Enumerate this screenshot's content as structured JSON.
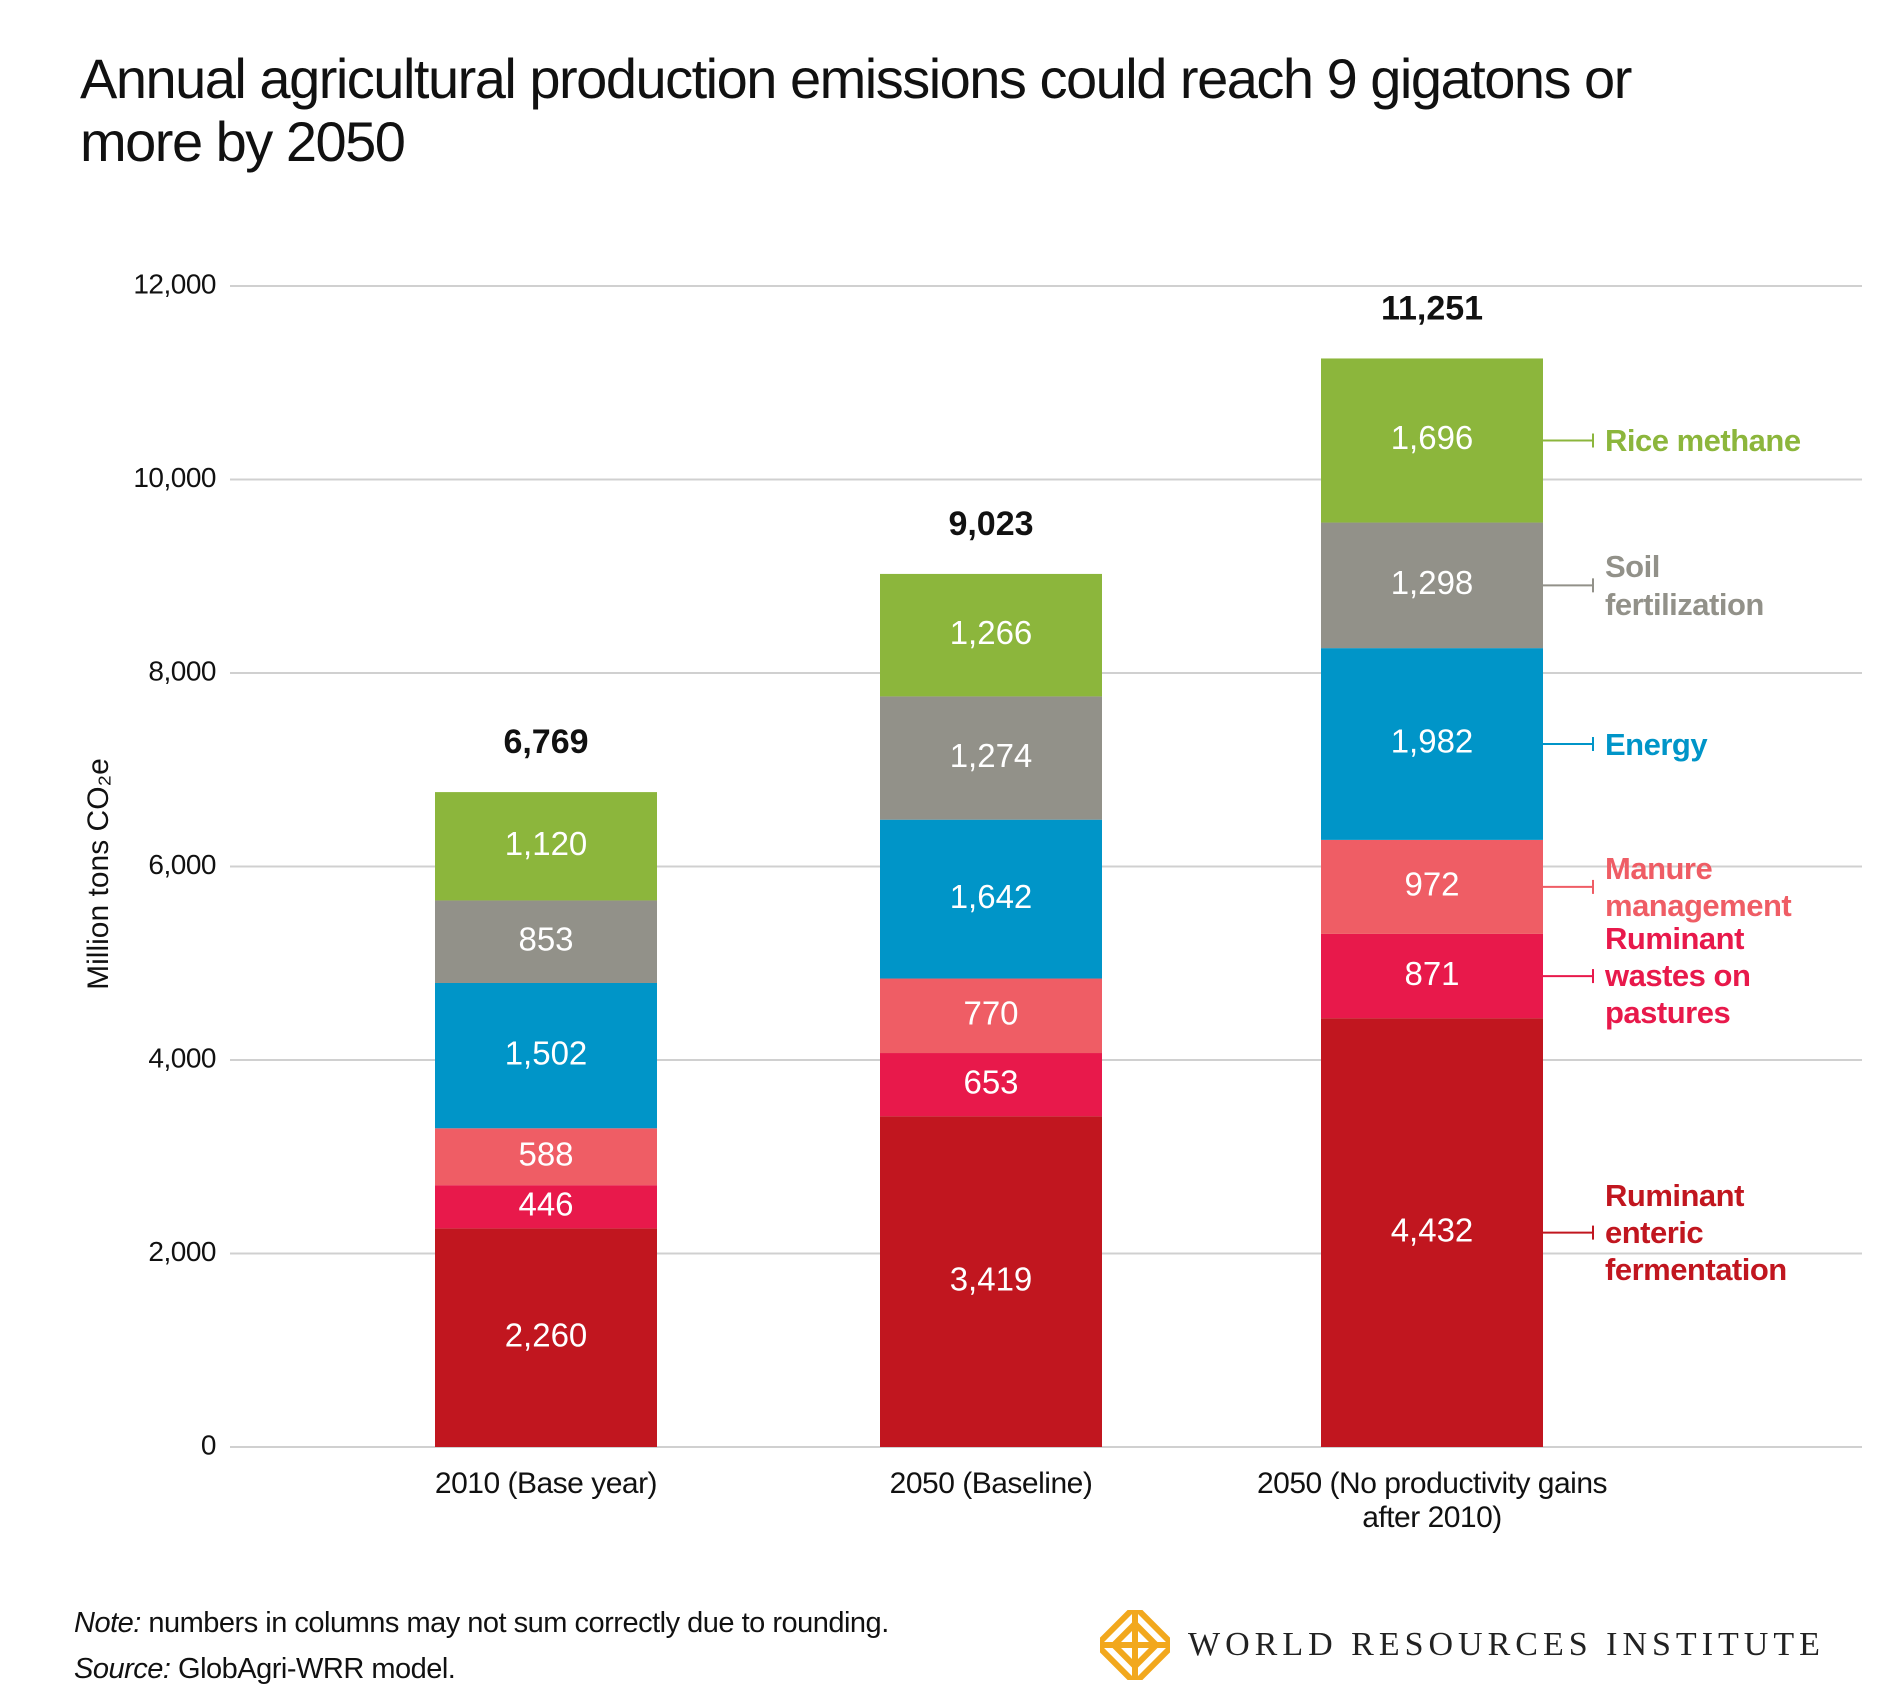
{
  "chart_data": {
    "type": "stacked_bar",
    "title": "Annual agricultural production emissions could reach 9 gigatons or more by 2050",
    "y_label": "Million tons CO₂e",
    "categories": [
      "2010 (Base year)",
      "2050 (Baseline)",
      "2050 (No productivity gains after 2010)"
    ],
    "series": [
      {
        "name": "Ruminant enteric fermentation",
        "color": "#c1161f",
        "values": [
          2260,
          3419,
          4432
        ],
        "value_labels": [
          "2,260",
          "3,419",
          "4,432"
        ]
      },
      {
        "name": "Ruminant wastes on pastures",
        "color": "#e8194b",
        "values": [
          446,
          653,
          871
        ]
      },
      {
        "name": "Manure management",
        "color": "#ef5d65",
        "values": [
          588,
          770,
          972
        ]
      },
      {
        "name": "Energy",
        "color": "#0095c8",
        "values": [
          1502,
          1642,
          1982
        ],
        "value_labels": [
          "1,502",
          "1,642",
          "1,982"
        ]
      },
      {
        "name": "Soil fertilization",
        "color": "#929189",
        "values": [
          853,
          1274,
          1298
        ],
        "value_labels": [
          "853",
          "1,274",
          "1,298"
        ]
      },
      {
        "name": "Rice methane",
        "color": "#8cb63c",
        "values": [
          1120,
          1266,
          1696
        ],
        "value_labels": [
          "1,120",
          "1,266",
          "1,696"
        ]
      }
    ],
    "totals": {
      "values": [
        6769,
        9023,
        11251
      ],
      "value_labels": [
        "6,769",
        "9,023",
        "11,251"
      ]
    },
    "ylim": [
      0,
      12000
    ],
    "yticks": [
      0,
      {
        "value": 2000,
        "label": "2,000"
      },
      {
        "value": 4000,
        "label": "4,000"
      },
      {
        "value": 6000,
        "label": "6,000"
      },
      {
        "value": 8000,
        "label": "8,000"
      },
      {
        "value": 10000,
        "label": "10,000"
      },
      {
        "value": 12000,
        "label": "12,000"
      }
    ],
    "grid": true
  },
  "footer": {
    "note_label": "Note:",
    "note": "numbers in columns may not sum correctly due to rounding.",
    "source_label": "Source:",
    "source": "GlobAgri-WRR model.",
    "logo": "WORLD RESOURCES INSTITUTE"
  }
}
